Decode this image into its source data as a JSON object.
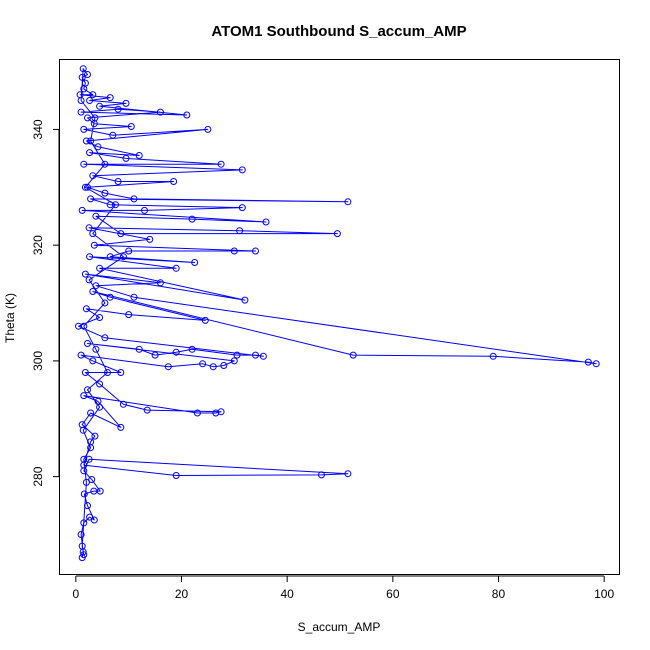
{
  "chart_data": {
    "type": "scatter",
    "title": "ATOM1 Southbound S_accum_AMP",
    "xlabel": "S_accum_AMP",
    "ylabel": "Theta (K)",
    "xlim": [
      -3,
      103
    ],
    "ylim": [
      263,
      352
    ],
    "xticks": [
      0,
      20,
      40,
      60,
      80,
      100
    ],
    "yticks": [
      280,
      300,
      320,
      340
    ],
    "grid": false,
    "series_color": "#0000ff",
    "marker": "open-circle",
    "connected": true,
    "series": [
      {
        "points": [
          [
            1.2,
            266
          ],
          [
            1.4,
            267
          ],
          [
            1.0,
            270
          ],
          [
            1.5,
            272
          ],
          [
            2.6,
            273
          ],
          [
            3.5,
            272.5
          ],
          [
            2.2,
            275
          ],
          [
            1.6,
            277
          ],
          [
            3.4,
            277.5
          ],
          [
            4.6,
            277.5
          ],
          [
            3.0,
            279.5
          ],
          [
            1.5,
            281
          ],
          [
            2.5,
            283
          ],
          [
            51.5,
            280.5
          ],
          [
            46.5,
            280.3
          ],
          [
            19,
            280.2
          ],
          [
            1.5,
            282
          ],
          [
            2.8,
            286
          ],
          [
            3.6,
            287
          ],
          [
            1.2,
            289
          ],
          [
            2.8,
            291
          ],
          [
            8.5,
            288.5
          ],
          [
            4.2,
            293
          ],
          [
            1.5,
            294
          ],
          [
            23,
            291
          ],
          [
            26.5,
            291
          ],
          [
            27.5,
            291.2
          ],
          [
            13.5,
            291.5
          ],
          [
            9,
            292.5
          ],
          [
            4.5,
            296
          ],
          [
            1.8,
            298
          ],
          [
            8.5,
            298
          ],
          [
            3.2,
            300
          ],
          [
            1.0,
            301
          ],
          [
            17.5,
            299
          ],
          [
            24,
            299.5
          ],
          [
            26,
            299
          ],
          [
            28,
            299.2
          ],
          [
            30,
            300
          ],
          [
            2.2,
            303
          ],
          [
            12,
            302
          ],
          [
            15,
            301
          ],
          [
            19,
            301.5
          ],
          [
            22,
            302
          ],
          [
            30.5,
            301
          ],
          [
            34,
            301
          ],
          [
            35.5,
            300.8
          ],
          [
            5.5,
            304
          ],
          [
            0.5,
            306
          ],
          [
            4.5,
            307.5
          ],
          [
            2.0,
            309
          ],
          [
            10,
            308
          ],
          [
            24.5,
            307
          ],
          [
            6.5,
            311
          ],
          [
            3.2,
            312
          ],
          [
            52.5,
            301
          ],
          [
            79,
            300.8
          ],
          [
            97,
            299.8
          ],
          [
            98.5,
            299.5
          ],
          [
            11,
            311
          ],
          [
            3.8,
            313
          ],
          [
            16,
            313.5
          ],
          [
            1.8,
            315
          ],
          [
            32,
            310.5
          ],
          [
            4.5,
            316
          ],
          [
            19,
            316
          ],
          [
            2.6,
            318
          ],
          [
            22.5,
            317
          ],
          [
            6.5,
            318
          ],
          [
            10,
            319
          ],
          [
            30,
            319
          ],
          [
            34,
            319
          ],
          [
            3.5,
            320
          ],
          [
            14,
            321
          ],
          [
            2.5,
            323
          ],
          [
            31,
            322.5
          ],
          [
            49.5,
            322
          ],
          [
            8.5,
            322
          ],
          [
            3.8,
            325
          ],
          [
            22,
            324.5
          ],
          [
            36,
            324
          ],
          [
            1.2,
            326
          ],
          [
            13,
            326
          ],
          [
            31.5,
            326.5
          ],
          [
            6.5,
            327
          ],
          [
            2.8,
            328
          ],
          [
            51.5,
            327.5
          ],
          [
            11,
            328
          ],
          [
            5.5,
            329
          ],
          [
            2.2,
            330
          ],
          [
            18.5,
            331
          ],
          [
            8,
            331
          ],
          [
            3.2,
            332
          ],
          [
            31.5,
            333
          ],
          [
            1.5,
            334
          ],
          [
            27.5,
            334
          ],
          [
            9.5,
            335
          ],
          [
            2.6,
            336
          ],
          [
            12,
            335.5
          ],
          [
            4.2,
            337
          ],
          [
            2.0,
            338
          ],
          [
            25,
            340
          ],
          [
            7,
            339
          ],
          [
            1.5,
            340
          ],
          [
            10.5,
            340.5
          ],
          [
            3.5,
            341
          ],
          [
            2.2,
            342
          ],
          [
            16,
            343
          ],
          [
            8,
            343.5
          ],
          [
            1.0,
            343
          ],
          [
            21,
            342.5
          ],
          [
            4.5,
            344
          ],
          [
            9.5,
            344.5
          ],
          [
            2.6,
            345
          ],
          [
            6.5,
            345.5
          ],
          [
            0.8,
            346
          ],
          [
            3.2,
            346
          ],
          [
            1.5,
            347
          ],
          [
            1.8,
            348
          ],
          [
            1.2,
            349
          ],
          [
            2.2,
            349.5
          ],
          [
            1.4,
            350.5
          ],
          [
            1.0,
            345
          ],
          [
            3.6,
            342
          ],
          [
            2.8,
            338
          ],
          [
            5.5,
            334
          ],
          [
            1.8,
            330
          ],
          [
            7.5,
            327
          ],
          [
            3.2,
            322
          ],
          [
            9,
            318
          ],
          [
            2.5,
            314
          ],
          [
            5.5,
            310
          ],
          [
            1.5,
            306
          ],
          [
            3.8,
            302
          ],
          [
            6,
            298
          ],
          [
            2.2,
            295
          ],
          [
            4.5,
            292
          ],
          [
            1.4,
            288
          ],
          [
            2.8,
            285
          ],
          [
            1.5,
            283
          ],
          [
            2.0,
            279
          ],
          [
            1.2,
            268
          ],
          [
            1.5,
            266.5
          ]
        ]
      }
    ]
  }
}
